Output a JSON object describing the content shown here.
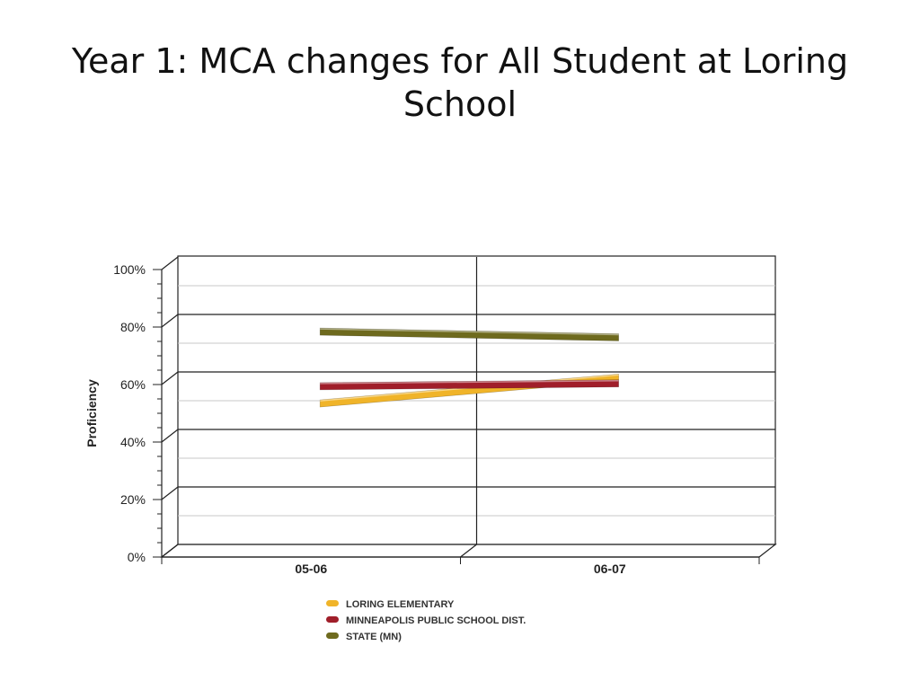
{
  "slide": {
    "title": "Year 1: MCA changes for All Student at Loring School"
  },
  "chart_data": {
    "type": "line",
    "title": "Year 1: MCA changes for All Student at Loring School",
    "categories": [
      "05-06",
      "06-07"
    ],
    "ylabel": "Proficiency",
    "xlabel": "",
    "ylim": [
      0,
      100
    ],
    "y_ticks": [
      "0%",
      "20%",
      "40%",
      "60%",
      "80%",
      "100%"
    ],
    "y_tick_values": [
      0,
      20,
      40,
      60,
      80,
      100
    ],
    "grid": true,
    "legend_position": "bottom",
    "series": [
      {
        "name": "LORING ELEMENTARY",
        "values": [
          51,
          60
        ],
        "color": "#f0b429"
      },
      {
        "name": "MINNEAPOLIS PUBLIC SCHOOL DIST.",
        "values": [
          57,
          58
        ],
        "color": "#a01e2a"
      },
      {
        "name": "STATE (MN)",
        "values": [
          76,
          74
        ],
        "color": "#6e6a1e"
      }
    ]
  }
}
